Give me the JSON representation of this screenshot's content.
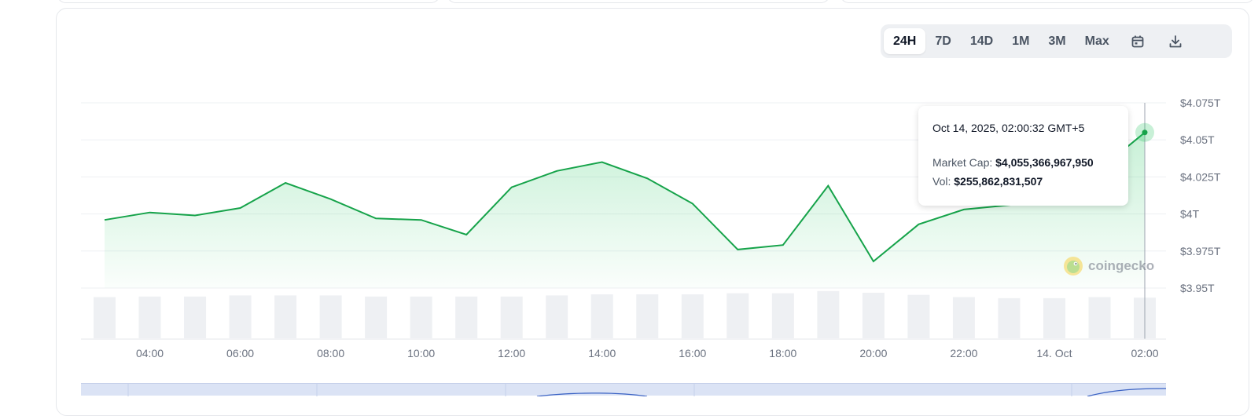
{
  "toolbar": {
    "ranges": [
      "24H",
      "7D",
      "14D",
      "1M",
      "3M",
      "Max"
    ],
    "active": "24H",
    "calendar_icon": "calendar-icon",
    "download_icon": "download-icon"
  },
  "y_axis": [
    "$4.075T",
    "$4.05T",
    "$4.025T",
    "$4T",
    "$3.975T",
    "$3.95T"
  ],
  "x_axis": [
    "04:00",
    "06:00",
    "08:00",
    "10:00",
    "12:00",
    "14:00",
    "16:00",
    "18:00",
    "20:00",
    "22:00",
    "14. Oct",
    "02:00"
  ],
  "tooltip": {
    "date": "Oct 14, 2025, 02:00:32 GMT+5",
    "market_cap_label": "Market Cap: ",
    "market_cap_value": "$4,055,366,967,950",
    "vol_label": "Vol: ",
    "vol_value": "$255,862,831,507"
  },
  "watermark": "coingecko",
  "colors": {
    "line": "#16a34a",
    "fill": "#22c55e",
    "volume": "#eef0f3",
    "grid": "#eef0f3"
  },
  "chart_data": {
    "type": "line",
    "series": [
      {
        "x": [
          "03:00",
          "04:00",
          "05:00",
          "06:00",
          "07:00",
          "08:00",
          "09:00",
          "10:00",
          "11:00",
          "12:00",
          "13:00",
          "14:00",
          "15:00",
          "16:00",
          "17:00",
          "18:00",
          "19:00",
          "20:00",
          "21:00",
          "22:00",
          "23:00",
          "00:00",
          "01:00",
          "02:00"
        ],
        "values": [
          3.996,
          4.001,
          3.999,
          4.004,
          4.021,
          4.01,
          3.997,
          3.996,
          3.986,
          4.018,
          4.029,
          4.035,
          4.024,
          4.007,
          3.976,
          3.979,
          4.019,
          3.968,
          3.993,
          4.003,
          4.006,
          4.01,
          4.03,
          4.055
        ]
      }
    ],
    "volume": [
      0.75,
      0.76,
      0.76,
      0.78,
      0.78,
      0.78,
      0.76,
      0.76,
      0.76,
      0.76,
      0.78,
      0.8,
      0.8,
      0.8,
      0.82,
      0.82,
      0.86,
      0.83,
      0.79,
      0.75,
      0.73,
      0.73,
      0.75,
      0.74
    ],
    "ylim": [
      3.95,
      4.075
    ],
    "xlabel": "",
    "ylabel": ""
  }
}
